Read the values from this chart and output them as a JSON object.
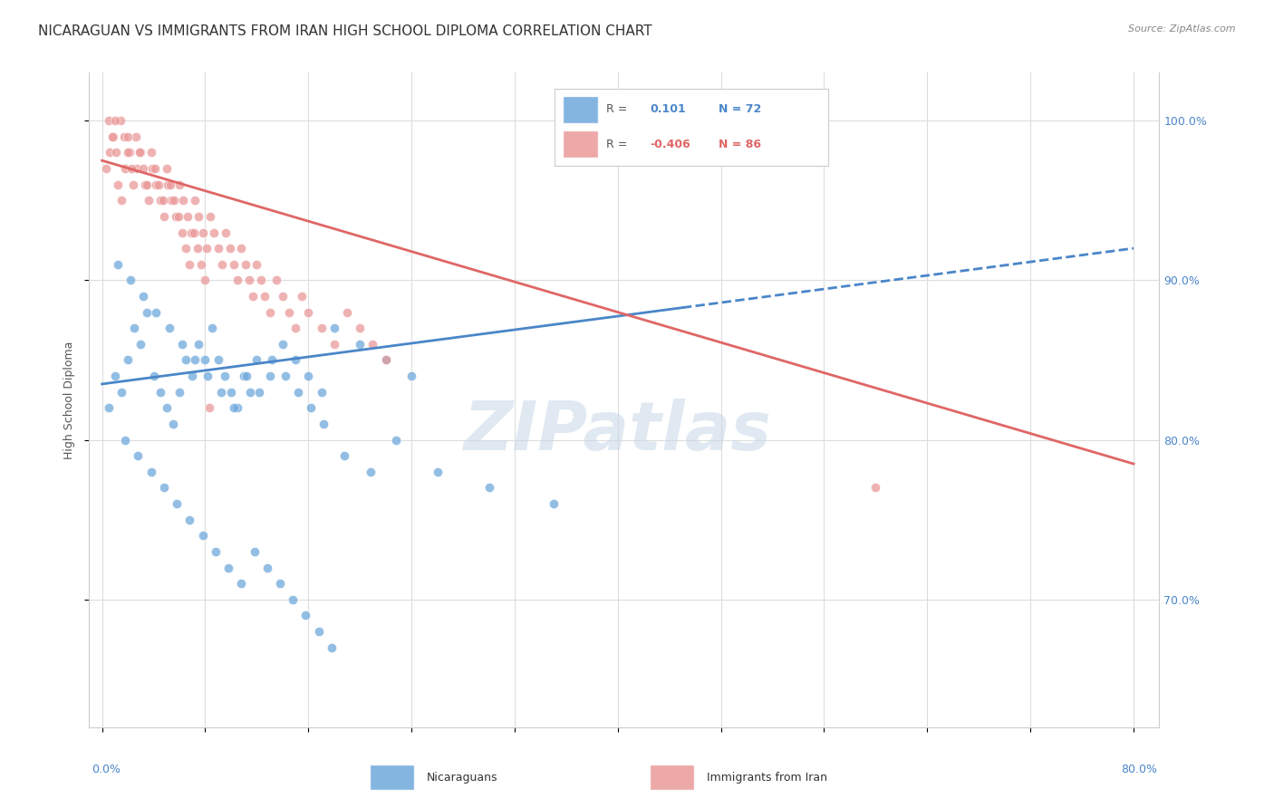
{
  "title": "NICARAGUAN VS IMMIGRANTS FROM IRAN HIGH SCHOOL DIPLOMA CORRELATION CHART",
  "source": "Source: ZipAtlas.com",
  "ylabel": "High School Diploma",
  "blue_color": "#6fa8dc",
  "pink_color": "#ea9999",
  "blue_line_color": "#4a86c8",
  "pink_line_color": "#e06666",
  "watermark": "ZIPatlas",
  "watermark_color": "#c8d8e8",
  "blue_scatter_x": [
    0.5,
    1.0,
    1.5,
    2.0,
    2.5,
    3.0,
    3.5,
    4.0,
    4.5,
    5.0,
    5.5,
    6.0,
    6.5,
    7.0,
    7.5,
    8.0,
    8.5,
    9.0,
    9.5,
    10.0,
    10.5,
    11.0,
    11.5,
    12.0,
    13.0,
    14.0,
    15.0,
    16.0,
    17.0,
    18.0,
    20.0,
    22.0,
    24.0,
    26.0,
    30.0,
    35.0,
    1.2,
    2.2,
    3.2,
    4.2,
    5.2,
    6.2,
    7.2,
    8.2,
    9.2,
    10.2,
    11.2,
    12.2,
    13.2,
    14.2,
    15.2,
    16.2,
    17.2,
    1.8,
    2.8,
    3.8,
    4.8,
    5.8,
    6.8,
    7.8,
    8.8,
    9.8,
    10.8,
    11.8,
    12.8,
    13.8,
    14.8,
    15.8,
    16.8,
    17.8,
    18.8,
    20.8,
    22.8
  ],
  "blue_scatter_y": [
    82,
    84,
    83,
    85,
    87,
    86,
    88,
    84,
    83,
    82,
    81,
    83,
    85,
    84,
    86,
    85,
    87,
    85,
    84,
    83,
    82,
    84,
    83,
    85,
    84,
    86,
    85,
    84,
    83,
    87,
    86,
    85,
    84,
    78,
    77,
    76,
    91,
    90,
    89,
    88,
    87,
    86,
    85,
    84,
    83,
    82,
    84,
    83,
    85,
    84,
    83,
    82,
    81,
    80,
    79,
    78,
    77,
    76,
    75,
    74,
    73,
    72,
    71,
    73,
    72,
    71,
    70,
    69,
    68,
    67,
    79,
    78,
    80
  ],
  "pink_scatter_x": [
    0.3,
    0.6,
    0.9,
    1.2,
    1.5,
    1.8,
    2.1,
    2.4,
    2.7,
    3.0,
    3.3,
    3.6,
    3.9,
    4.2,
    4.5,
    4.8,
    5.1,
    5.4,
    5.7,
    6.0,
    6.3,
    6.6,
    6.9,
    7.2,
    7.5,
    7.8,
    8.1,
    8.4,
    8.7,
    9.0,
    9.3,
    9.6,
    9.9,
    10.2,
    10.5,
    10.8,
    11.1,
    11.4,
    11.7,
    12.0,
    12.3,
    12.6,
    13.0,
    13.5,
    14.0,
    14.5,
    15.0,
    15.5,
    16.0,
    17.0,
    18.0,
    19.0,
    20.0,
    21.0,
    22.0,
    0.5,
    0.8,
    1.1,
    1.4,
    1.7,
    2.0,
    2.3,
    2.6,
    2.9,
    3.2,
    3.5,
    3.8,
    4.1,
    4.4,
    4.7,
    5.0,
    5.3,
    5.6,
    5.9,
    6.2,
    6.5,
    6.8,
    7.1,
    7.4,
    7.7,
    8.0,
    8.3,
    60.0,
    1.0,
    2.0
  ],
  "pink_scatter_y": [
    97,
    98,
    99,
    96,
    95,
    97,
    98,
    96,
    97,
    98,
    96,
    95,
    97,
    96,
    95,
    94,
    96,
    95,
    94,
    96,
    95,
    94,
    93,
    95,
    94,
    93,
    92,
    94,
    93,
    92,
    91,
    93,
    92,
    91,
    90,
    92,
    91,
    90,
    89,
    91,
    90,
    89,
    88,
    90,
    89,
    88,
    87,
    89,
    88,
    87,
    86,
    88,
    87,
    86,
    85,
    100,
    99,
    98,
    100,
    99,
    98,
    97,
    99,
    98,
    97,
    96,
    98,
    97,
    96,
    95,
    97,
    96,
    95,
    94,
    93,
    92,
    91,
    93,
    92,
    91,
    90,
    82,
    77,
    100,
    99
  ],
  "xlim": [
    -1,
    82
  ],
  "ylim": [
    62,
    103
  ],
  "blue_trend_x0": 0,
  "blue_trend_x1": 80,
  "blue_trend_y0": 83.5,
  "blue_trend_y1": 92.0,
  "blue_trend_solid_end": 45,
  "pink_trend_x0": 0,
  "pink_trend_x1": 80,
  "pink_trend_y0": 97.5,
  "pink_trend_y1": 78.5,
  "grid_color": "#dddddd",
  "bg_color": "#ffffff",
  "title_fontsize": 11,
  "axis_label_fontsize": 9,
  "tick_fontsize": 9,
  "dot_size": 55
}
